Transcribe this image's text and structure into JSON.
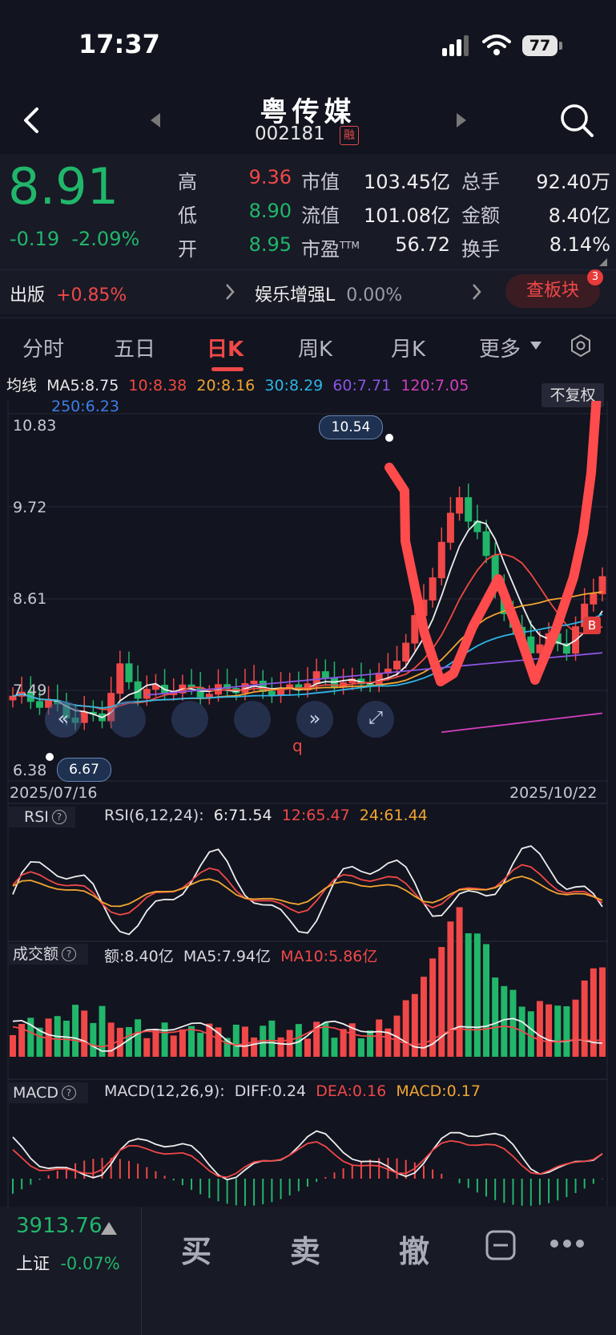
{
  "status_bar": {
    "time": "17:37",
    "battery": "77"
  },
  "header": {
    "title": "粤传媒",
    "code": "002181",
    "badge": "融"
  },
  "quote": {
    "price": "8.91",
    "change": "-0.19",
    "change_pct": "-2.09%",
    "rows": [
      {
        "l1": "高",
        "v1": "9.36",
        "l2": "市值",
        "v2": "103.45亿",
        "l3": "总手",
        "v3": "92.40万"
      },
      {
        "l1": "低",
        "v1": "8.90",
        "l2": "流值",
        "v2": "101.08亿",
        "l3": "金额",
        "v3": "8.40亿"
      },
      {
        "l1": "开",
        "v1": "8.95",
        "l2": "市盈",
        "l2_sup": "TTM",
        "v2": "56.72",
        "l3": "换手",
        "v3": "8.14%"
      }
    ]
  },
  "sectors": {
    "s1_name": "出版",
    "s1_chg": "+0.85%",
    "s2_name": "娱乐增强L",
    "s2_chg": "0.00%",
    "button": "查板块",
    "count": "3"
  },
  "tabs": [
    "分时",
    "五日",
    "日K",
    "周K",
    "月K",
    "更多"
  ],
  "ma_legend": {
    "label": "均线",
    "ma5": "MA5:8.75",
    "ma10": "10:8.38",
    "ma20": "20:8.16",
    "ma30": "30:8.29",
    "ma60": "60:7.71",
    "ma120": "120:7.05",
    "ma250": "250:6.23",
    "adjust": "不复权"
  },
  "kline": {
    "y_ticks": [
      "10.83",
      "9.72",
      "8.61",
      "7.49",
      "6.38"
    ],
    "date_start": "2025/07/16",
    "date_end": "2025/10/22",
    "high_marker": "10.54",
    "low_marker": "6.67",
    "q_label": "q",
    "b_label": "B"
  },
  "rsi": {
    "name": "RSI",
    "params": "RSI(6,12,24):",
    "v6": "6:71.54",
    "v12": "12:65.47",
    "v24": "24:61.44"
  },
  "volume": {
    "name": "成交额",
    "amt": "额:8.40亿",
    "ma5": "MA5:7.94亿",
    "ma10": "MA10:5.86亿"
  },
  "macd": {
    "name": "MACD",
    "params": "MACD(12,26,9):",
    "diff": "DIFF:0.24",
    "dea": "DEA:0.16",
    "macd": "MACD:0.17"
  },
  "index": {
    "value": "3913.76",
    "name": "上证",
    "change": "-0.07%"
  },
  "actions": {
    "buy": "买",
    "sell": "卖",
    "cancel": "撤"
  },
  "colors": {
    "up": "#f04848",
    "down": "#21b66a",
    "bg": "#12141f"
  }
}
